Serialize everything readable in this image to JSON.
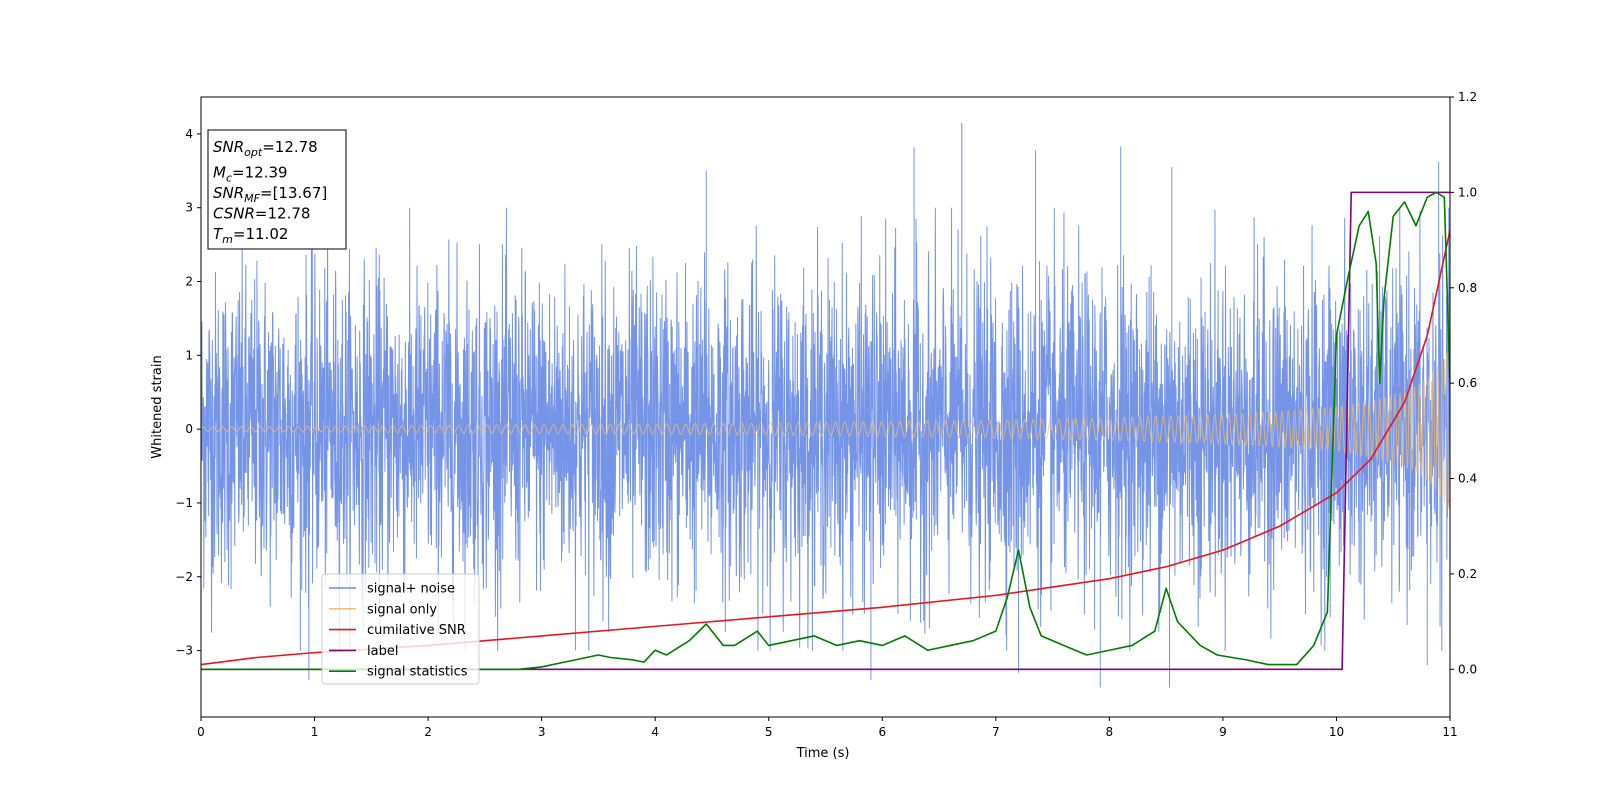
{
  "chart_data": {
    "type": "line",
    "xlabel": "Time (s)",
    "ylabel": "Whitened strain",
    "xlim": [
      0,
      11
    ],
    "ylim_left": [
      -3.9,
      4.5
    ],
    "ylim_right": [
      -0.1,
      1.2
    ],
    "x_ticks": [
      0,
      1,
      2,
      3,
      4,
      5,
      6,
      7,
      8,
      9,
      10,
      11
    ],
    "y_ticks_left": [
      -3,
      -2,
      -1,
      0,
      1,
      2,
      3,
      4
    ],
    "y_ticks_right": [
      0.0,
      0.2,
      0.4,
      0.6,
      0.8,
      1.0,
      1.2
    ],
    "info_box": [
      {
        "base": "SNR",
        "sub": "opt",
        "value": "=12.78"
      },
      {
        "base": "M",
        "sub": "c",
        "value": "=12.39"
      },
      {
        "base": "SNR",
        "sub": "MF",
        "value": "=[13.67]"
      },
      {
        "base": "CSNR",
        "sub": "",
        "value": "=12.78"
      },
      {
        "base": "T",
        "sub": "m",
        "value": "=11.02"
      }
    ],
    "legend": {
      "placement": "lower-left",
      "entries": [
        {
          "label": "signal+ noise",
          "color": "#6f8ee6"
        },
        {
          "label": "signal only",
          "color": "#f7c26b"
        },
        {
          "label": "cumilative SNR",
          "color": "#e8161b"
        },
        {
          "label": "label",
          "color": "#800080"
        },
        {
          "label": "signal statistics",
          "color": "#007c00"
        }
      ]
    },
    "series": [
      {
        "name": "signal+ noise",
        "axis": "left",
        "color": "#6f8ee6",
        "description": "whitened strain noise, approx ±2.5 std band with spikes to ±4",
        "noise_sigma": 1.05,
        "peaks": [
          [
            6.7,
            4.15
          ],
          [
            6.28,
            3.82
          ],
          [
            8.1,
            3.83
          ],
          [
            7.35,
            3.78
          ],
          [
            10.9,
            3.62
          ],
          [
            8.55,
            3.55
          ],
          [
            4.45,
            3.5
          ]
        ],
        "troughs": [
          [
            7.92,
            -3.5
          ],
          [
            8.53,
            -3.5
          ],
          [
            5.9,
            -3.4
          ],
          [
            0.95,
            -3.4
          ],
          [
            7.2,
            -3.3
          ],
          [
            10.8,
            -3.2
          ]
        ]
      },
      {
        "name": "signal only",
        "axis": "left",
        "color": "#f7c26b",
        "description": "chirp signal, amplitude grows toward merger",
        "x": [
          0,
          1,
          2,
          3,
          4,
          5,
          6,
          7,
          8,
          9,
          9.5,
          10,
          10.3,
          10.6,
          10.8,
          11.0
        ],
        "envelope": [
          0.03,
          0.04,
          0.05,
          0.06,
          0.07,
          0.08,
          0.1,
          0.12,
          0.15,
          0.2,
          0.24,
          0.3,
          0.38,
          0.5,
          0.68,
          1.1
        ]
      },
      {
        "name": "cumilative SNR",
        "axis": "right",
        "color": "#e8161b",
        "x": [
          0,
          0.5,
          1,
          2,
          3,
          4,
          5,
          6,
          7,
          8,
          8.5,
          9,
          9.5,
          10,
          10.3,
          10.6,
          10.8,
          11.0
        ],
        "y": [
          0.01,
          0.025,
          0.035,
          0.05,
          0.07,
          0.09,
          0.11,
          0.13,
          0.155,
          0.19,
          0.215,
          0.25,
          0.3,
          0.37,
          0.44,
          0.56,
          0.7,
          0.92
        ]
      },
      {
        "name": "label",
        "axis": "right",
        "color": "#800080",
        "x": [
          0,
          10.05,
          10.13,
          11.0
        ],
        "y": [
          0.0,
          0.0,
          1.0,
          1.0
        ]
      },
      {
        "name": "signal statistics",
        "axis": "right",
        "color": "#007c00",
        "x": [
          0,
          1,
          2,
          2.8,
          3.0,
          3.2,
          3.3,
          3.5,
          3.6,
          3.8,
          3.9,
          4.0,
          4.1,
          4.2,
          4.3,
          4.45,
          4.6,
          4.7,
          4.9,
          5.0,
          5.2,
          5.4,
          5.6,
          5.8,
          6.0,
          6.2,
          6.4,
          6.6,
          6.8,
          7.0,
          7.1,
          7.2,
          7.3,
          7.4,
          7.6,
          7.8,
          8.0,
          8.2,
          8.4,
          8.5,
          8.6,
          8.8,
          8.95,
          9.2,
          9.4,
          9.65,
          9.8,
          9.92,
          10.0,
          10.1,
          10.2,
          10.28,
          10.35,
          10.38,
          10.42,
          10.5,
          10.6,
          10.7,
          10.8,
          10.88,
          10.95,
          11.0
        ],
        "y": [
          0.0,
          0.0,
          0.0,
          0.0,
          0.005,
          0.015,
          0.02,
          0.03,
          0.025,
          0.02,
          0.015,
          0.04,
          0.03,
          0.045,
          0.06,
          0.095,
          0.05,
          0.05,
          0.08,
          0.05,
          0.06,
          0.07,
          0.05,
          0.06,
          0.05,
          0.07,
          0.04,
          0.05,
          0.06,
          0.08,
          0.15,
          0.25,
          0.13,
          0.07,
          0.05,
          0.03,
          0.04,
          0.05,
          0.08,
          0.17,
          0.1,
          0.05,
          0.03,
          0.02,
          0.01,
          0.01,
          0.05,
          0.12,
          0.7,
          0.82,
          0.93,
          0.96,
          0.85,
          0.6,
          0.78,
          0.95,
          0.98,
          0.93,
          0.99,
          1.0,
          0.99,
          0.6
        ]
      }
    ]
  }
}
